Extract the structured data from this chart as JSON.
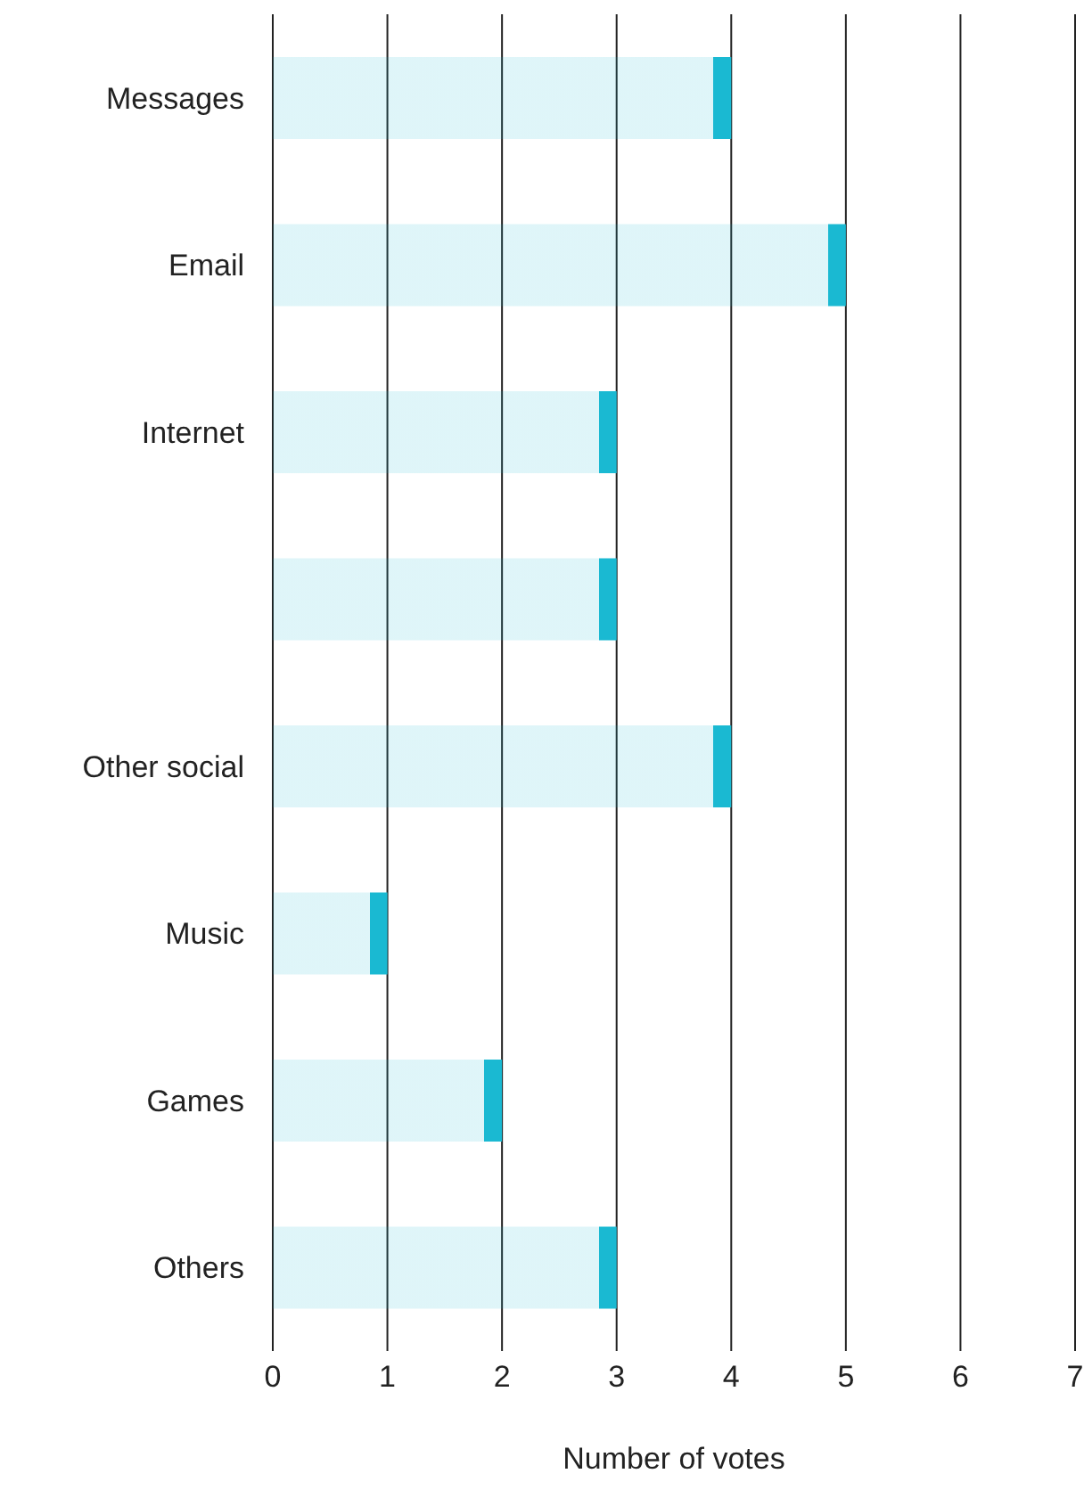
{
  "chart_data": {
    "type": "bar",
    "orientation": "horizontal",
    "categories": [
      "Messages",
      "Email",
      "Internet",
      null,
      "Other social",
      "Music",
      "Games",
      "Others"
    ],
    "values": [
      4,
      5,
      3,
      3,
      4,
      1,
      2,
      3
    ],
    "color": "#1ab9d2",
    "xlim": [
      0,
      7
    ],
    "xticks": [
      0,
      1,
      2,
      3,
      4,
      5,
      6,
      7
    ],
    "xlabel": "Number of votes",
    "grid": "x"
  }
}
